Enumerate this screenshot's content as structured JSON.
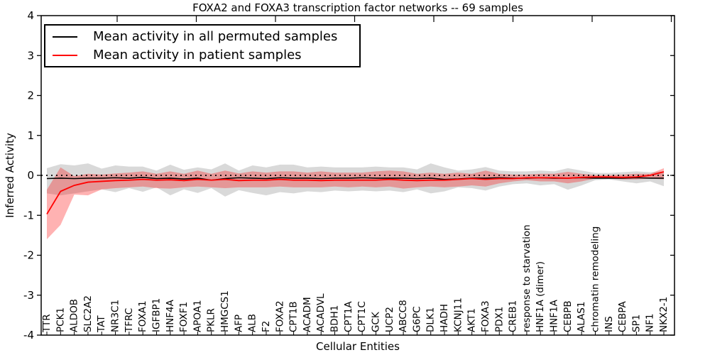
{
  "title": "FOXA2 and FOXA3 transcription factor networks -- 69 samples",
  "legend": {
    "items": [
      {
        "label": "Mean activity in all permuted samples",
        "color": "#000000"
      },
      {
        "label": "Mean activity in patient samples",
        "color": "#ff0000"
      }
    ]
  },
  "chart_data": {
    "type": "line",
    "title": "FOXA2 and FOXA3 transcription factor networks -- 69 samples",
    "xlabel": "Cellular Entities",
    "ylabel": "Inferred Activity",
    "ylim": [
      -4,
      4
    ],
    "yticks": [
      -4,
      -3,
      -2,
      -1,
      0,
      1,
      2,
      3,
      4
    ],
    "grid": false,
    "legend_position": "upper left",
    "reference_line": {
      "y": 0,
      "style": "dotted",
      "color": "#000000"
    },
    "categories": [
      "TTR",
      "PCK1",
      "ALDOB",
      "SLC2A2",
      "TAT",
      "NR3C1",
      "TFRC",
      "FOXA1",
      "IGFBP1",
      "HNF4A",
      "FOXF1",
      "APOA1",
      "PKLR",
      "HMGCS1",
      "AFP",
      "ALB",
      "F2",
      "FOXA2",
      "CPT1B",
      "ACADM",
      "ACADVL",
      "BDH1",
      "CPT1A",
      "CPT1C",
      "GCK",
      "UCP2",
      "ABCC8",
      "G6PC",
      "DLK1",
      "HADH",
      "KCNJ11",
      "AKT1",
      "FOXA3",
      "PDX1",
      "CREB1",
      "response to starvation",
      "HNF1A (dimer)",
      "HNF1A",
      "CEBPB",
      "ALAS1",
      "chromatin remodeling",
      "INS",
      "CEBPA",
      "SP1",
      "NF1",
      "NKX2-1"
    ],
    "series": [
      {
        "name": "Mean activity in all permuted samples",
        "color": "#000000",
        "style": "solid",
        "values": [
          -0.08,
          -0.07,
          -0.08,
          -0.07,
          -0.07,
          -0.06,
          -0.07,
          -0.05,
          -0.08,
          -0.07,
          -0.09,
          -0.07,
          -0.12,
          -0.08,
          -0.06,
          -0.07,
          -0.08,
          -0.06,
          -0.07,
          -0.07,
          -0.08,
          -0.07,
          -0.07,
          -0.06,
          -0.07,
          -0.07,
          -0.07,
          -0.08,
          -0.07,
          -0.1,
          -0.09,
          -0.07,
          -0.07,
          -0.06,
          -0.07,
          -0.07,
          -0.06,
          -0.07,
          -0.07,
          -0.06,
          -0.07,
          -0.07,
          -0.07,
          -0.06,
          -0.07,
          -0.07
        ]
      },
      {
        "name": "Mean activity in patient samples",
        "color": "#ff0000",
        "style": "solid",
        "values": [
          -0.97,
          -0.4,
          -0.25,
          -0.17,
          -0.15,
          -0.13,
          -0.12,
          -0.1,
          -0.12,
          -0.11,
          -0.13,
          -0.1,
          -0.12,
          -0.1,
          -0.13,
          -0.12,
          -0.12,
          -0.1,
          -0.12,
          -0.12,
          -0.13,
          -0.12,
          -0.12,
          -0.12,
          -0.12,
          -0.1,
          -0.12,
          -0.13,
          -0.12,
          -0.12,
          -0.1,
          -0.08,
          -0.1,
          -0.08,
          -0.08,
          -0.06,
          -0.06,
          -0.06,
          -0.07,
          -0.05,
          -0.04,
          -0.04,
          -0.05,
          -0.04,
          0.0,
          0.09
        ]
      }
    ],
    "bands": [
      {
        "name": "permuted samples spread",
        "color": "rgba(0,0,0,0.15)",
        "upper": [
          0.18,
          0.28,
          0.25,
          0.3,
          0.17,
          0.25,
          0.22,
          0.22,
          0.12,
          0.27,
          0.14,
          0.2,
          0.15,
          0.3,
          0.12,
          0.25,
          0.2,
          0.27,
          0.27,
          0.2,
          0.22,
          0.2,
          0.2,
          0.2,
          0.22,
          0.2,
          0.2,
          0.15,
          0.3,
          0.2,
          0.12,
          0.15,
          0.21,
          0.12,
          0.1,
          0.1,
          0.12,
          0.1,
          0.18,
          0.12,
          0.06,
          0.06,
          0.08,
          0.1,
          0.08,
          0.1
        ],
        "lower": [
          -0.45,
          -0.5,
          -0.45,
          -0.4,
          -0.35,
          -0.42,
          -0.32,
          -0.41,
          -0.3,
          -0.5,
          -0.35,
          -0.44,
          -0.32,
          -0.53,
          -0.37,
          -0.44,
          -0.5,
          -0.42,
          -0.45,
          -0.4,
          -0.42,
          -0.38,
          -0.4,
          -0.38,
          -0.4,
          -0.38,
          -0.42,
          -0.35,
          -0.45,
          -0.4,
          -0.3,
          -0.32,
          -0.38,
          -0.28,
          -0.22,
          -0.2,
          -0.25,
          -0.22,
          -0.36,
          -0.25,
          -0.12,
          -0.1,
          -0.15,
          -0.2,
          -0.15,
          -0.27
        ]
      },
      {
        "name": "patient samples spread",
        "color": "rgba(255,0,0,0.30)",
        "upper": [
          -0.36,
          0.2,
          -0.02,
          0.04,
          0.02,
          0.05,
          0.07,
          0.1,
          0.04,
          0.1,
          0.04,
          0.12,
          0.04,
          0.12,
          0.05,
          0.1,
          0.07,
          0.1,
          0.1,
          0.07,
          0.1,
          0.07,
          0.07,
          0.07,
          0.1,
          0.12,
          0.1,
          0.04,
          0.07,
          0.04,
          0.07,
          0.04,
          0.12,
          0.04,
          0.02,
          0.02,
          0.04,
          0.04,
          0.09,
          0.04,
          0.01,
          0.01,
          0.02,
          0.04,
          0.04,
          0.18
        ],
        "lower": [
          -1.6,
          -1.24,
          -0.48,
          -0.5,
          -0.35,
          -0.32,
          -0.3,
          -0.28,
          -0.32,
          -0.33,
          -0.3,
          -0.28,
          -0.3,
          -0.32,
          -0.3,
          -0.3,
          -0.3,
          -0.28,
          -0.3,
          -0.3,
          -0.3,
          -0.28,
          -0.3,
          -0.28,
          -0.3,
          -0.28,
          -0.33,
          -0.3,
          -0.28,
          -0.3,
          -0.28,
          -0.25,
          -0.28,
          -0.2,
          -0.15,
          -0.12,
          -0.15,
          -0.15,
          -0.2,
          -0.15,
          -0.08,
          -0.08,
          -0.1,
          -0.1,
          -0.08,
          -0.1
        ]
      }
    ]
  }
}
